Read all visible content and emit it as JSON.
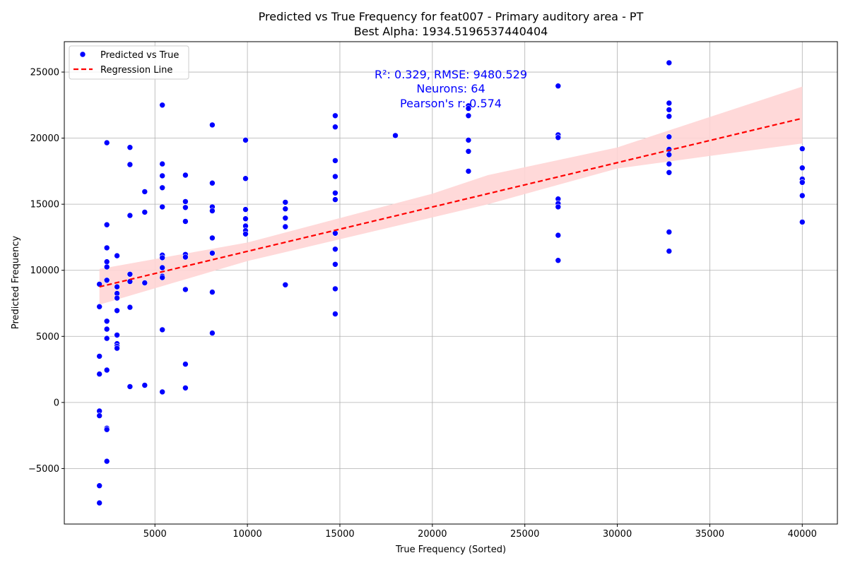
{
  "chart_data": {
    "type": "scatter",
    "title": "Predicted vs True Frequency for feat007 - Primary auditory area - PT",
    "subtitle": "Best Alpha: 1934.5196537440404",
    "xlabel": "True Frequency (Sorted)",
    "ylabel": "Predicted Frequency",
    "xlim": [
      100,
      41900
    ],
    "ylim": [
      -9200,
      27300
    ],
    "xticks": [
      5000,
      10000,
      15000,
      20000,
      25000,
      30000,
      35000,
      40000
    ],
    "yticks": [
      -5000,
      0,
      5000,
      10000,
      15000,
      20000,
      25000
    ],
    "grid": true,
    "legend_position": "top-left",
    "legend": [
      "Predicted vs True",
      "Regression Line"
    ],
    "colors": {
      "points": "#0000ff",
      "regression": "#ff0000",
      "ci_band": "#ffd5d5"
    },
    "annotations": [
      "R²: 0.329, RMSE: 9480.529",
      "Neurons: 64",
      "Pearson's r: 0.574"
    ],
    "regression_line": {
      "x": [
        2000,
        40000
      ],
      "y": [
        8750,
        21500
      ]
    },
    "confidence_band": {
      "x": [
        2000,
        10000,
        20000,
        23000,
        30000,
        40000
      ],
      "upper": [
        10100,
        12100,
        15800,
        17200,
        19300,
        23900
      ],
      "lower": [
        7400,
        10700,
        14000,
        15000,
        17700,
        19600
      ]
    },
    "series": [
      {
        "name": "Predicted vs True",
        "points": [
          [
            2000,
            8950
          ],
          [
            2000,
            7250
          ],
          [
            2000,
            3500
          ],
          [
            2000,
            2150
          ],
          [
            2000,
            -650
          ],
          [
            2000,
            -1000
          ],
          [
            2000,
            -6300
          ],
          [
            2000,
            -7600
          ],
          [
            2400,
            19650
          ],
          [
            2400,
            13450
          ],
          [
            2400,
            11700
          ],
          [
            2400,
            10650
          ],
          [
            2400,
            10250
          ],
          [
            2400,
            9250
          ],
          [
            2400,
            6150
          ],
          [
            2400,
            5550
          ],
          [
            2400,
            4850
          ],
          [
            2400,
            2450
          ],
          [
            2400,
            -1950
          ],
          [
            2400,
            -2050
          ],
          [
            2400,
            -4450
          ],
          [
            2950,
            11100
          ],
          [
            2950,
            8750
          ],
          [
            2950,
            8250
          ],
          [
            2950,
            7900
          ],
          [
            2950,
            6950
          ],
          [
            2950,
            5100
          ],
          [
            2950,
            4450
          ],
          [
            2950,
            4250
          ],
          [
            2950,
            4100
          ],
          [
            3650,
            19300
          ],
          [
            3650,
            18000
          ],
          [
            3650,
            14150
          ],
          [
            3650,
            9700
          ],
          [
            3650,
            9150
          ],
          [
            3650,
            7200
          ],
          [
            3650,
            1200
          ],
          [
            4450,
            15950
          ],
          [
            4450,
            14400
          ],
          [
            4450,
            9050
          ],
          [
            4450,
            1300
          ],
          [
            5400,
            22500
          ],
          [
            5400,
            18050
          ],
          [
            5400,
            17150
          ],
          [
            5400,
            16250
          ],
          [
            5400,
            14800
          ],
          [
            5400,
            11150
          ],
          [
            5400,
            10950
          ],
          [
            5400,
            10200
          ],
          [
            5400,
            9550
          ],
          [
            5400,
            9450
          ],
          [
            5400,
            5500
          ],
          [
            5400,
            800
          ],
          [
            6650,
            17200
          ],
          [
            6650,
            15200
          ],
          [
            6650,
            14750
          ],
          [
            6650,
            13700
          ],
          [
            6650,
            11200
          ],
          [
            6650,
            11000
          ],
          [
            6650,
            8550
          ],
          [
            6650,
            2900
          ],
          [
            6650,
            1100
          ],
          [
            8100,
            21000
          ],
          [
            8100,
            16600
          ],
          [
            8100,
            14800
          ],
          [
            8100,
            14500
          ],
          [
            8100,
            12450
          ],
          [
            8100,
            11300
          ],
          [
            8100,
            8350
          ],
          [
            8100,
            5250
          ],
          [
            9900,
            19850
          ],
          [
            9900,
            16950
          ],
          [
            9900,
            14600
          ],
          [
            9900,
            13900
          ],
          [
            9900,
            13350
          ],
          [
            9900,
            13000
          ],
          [
            9900,
            12750
          ],
          [
            12050,
            15150
          ],
          [
            12050,
            14650
          ],
          [
            12050,
            13950
          ],
          [
            12050,
            13300
          ],
          [
            12050,
            8900
          ],
          [
            14750,
            21700
          ],
          [
            14750,
            20850
          ],
          [
            14750,
            18300
          ],
          [
            14750,
            17100
          ],
          [
            14750,
            15850
          ],
          [
            14750,
            15350
          ],
          [
            14750,
            12800
          ],
          [
            14750,
            11600
          ],
          [
            14750,
            10450
          ],
          [
            14750,
            8600
          ],
          [
            14750,
            6700
          ],
          [
            18000,
            20200
          ],
          [
            21950,
            22450
          ],
          [
            21950,
            22250
          ],
          [
            21950,
            21700
          ],
          [
            21950,
            19850
          ],
          [
            21950,
            19000
          ],
          [
            21950,
            17500
          ],
          [
            26800,
            23950
          ],
          [
            26800,
            20250
          ],
          [
            26800,
            20050
          ],
          [
            26800,
            15400
          ],
          [
            26800,
            15050
          ],
          [
            26800,
            14800
          ],
          [
            26800,
            12650
          ],
          [
            26800,
            10750
          ],
          [
            32800,
            25700
          ],
          [
            32800,
            22650
          ],
          [
            32800,
            22150
          ],
          [
            32800,
            21650
          ],
          [
            32800,
            20100
          ],
          [
            32800,
            19150
          ],
          [
            32800,
            18750
          ],
          [
            32800,
            18050
          ],
          [
            32800,
            17400
          ],
          [
            32800,
            12900
          ],
          [
            32800,
            11450
          ],
          [
            40000,
            19200
          ],
          [
            40000,
            17750
          ],
          [
            40000,
            16900
          ],
          [
            40000,
            16650
          ],
          [
            40000,
            15650
          ],
          [
            40000,
            13650
          ]
        ]
      },
      {
        "name": "Regression Line"
      }
    ]
  }
}
